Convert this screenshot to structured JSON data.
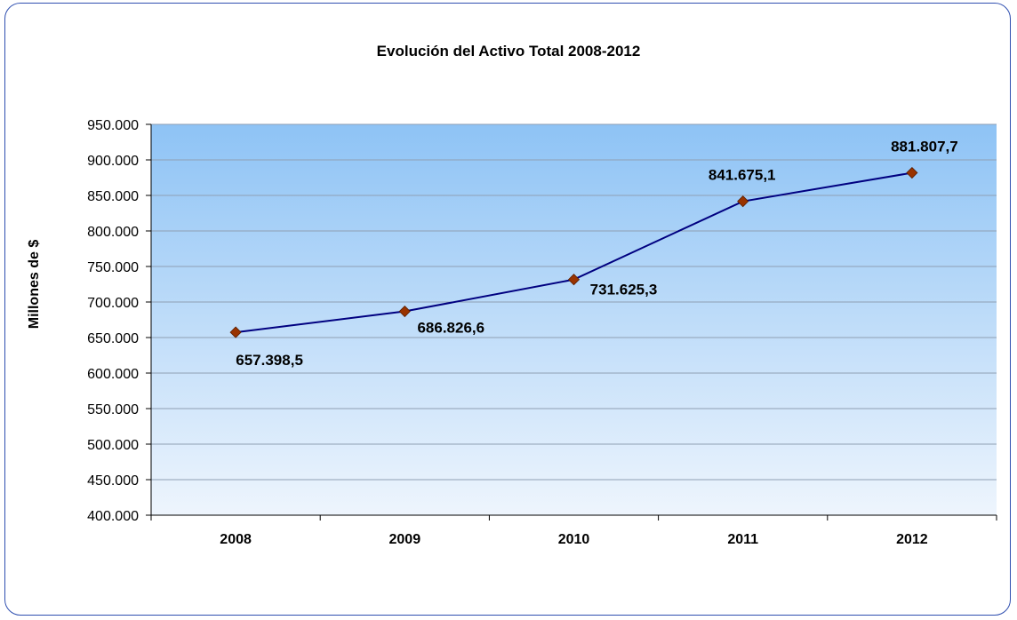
{
  "chart_data": {
    "type": "line",
    "title": "Evolución del Activo Total 2008-2012",
    "xlabel": "",
    "ylabel": "Millones de $",
    "categories": [
      "2008",
      "2009",
      "2010",
      "2011",
      "2012"
    ],
    "values": [
      657398.5,
      686826.6,
      731625.3,
      841675.1,
      881807.7
    ],
    "data_labels": [
      "657.398,5",
      "686.826,6",
      "731.625,3",
      "841.675,1",
      "881.807,7"
    ],
    "ylim": [
      400000,
      950000
    ],
    "yticks": [
      400000,
      450000,
      500000,
      550000,
      600000,
      650000,
      700000,
      750000,
      800000,
      850000,
      900000,
      950000
    ],
    "ytick_labels": [
      "400.000",
      "450.000",
      "500.000",
      "550.000",
      "600.000",
      "650.000",
      "700.000",
      "750.000",
      "800.000",
      "850.000",
      "900.000",
      "950.000"
    ],
    "grid": true,
    "colors": {
      "line": "#000080",
      "marker": "#993300",
      "plot_top": "#8ec3f5",
      "plot_bottom": "#eef5fd",
      "grid": "#8f9fb3",
      "border": "#2f4fb0"
    }
  }
}
